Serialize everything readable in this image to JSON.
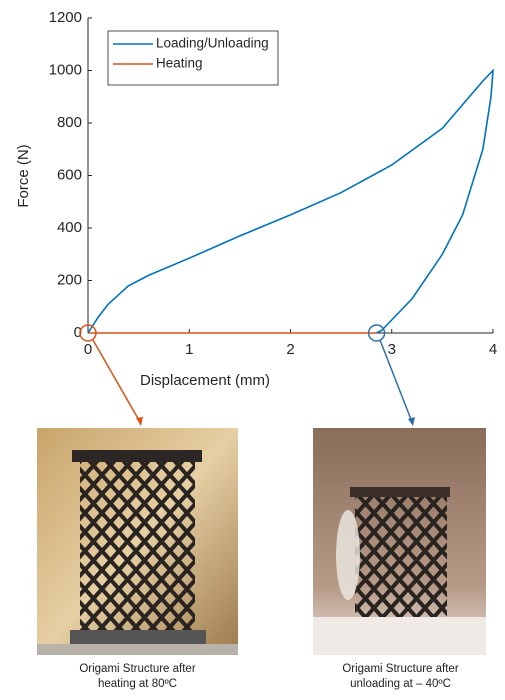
{
  "chart_data": {
    "type": "line",
    "xlabel": "Displacement (mm)",
    "ylabel": "Force (N)",
    "xlim": [
      0,
      4
    ],
    "ylim": [
      0,
      1200
    ],
    "xticks": [
      0,
      1,
      2,
      3,
      4
    ],
    "yticks": [
      0,
      200,
      400,
      600,
      800,
      1000,
      1200
    ],
    "legend": "upper left",
    "series": [
      {
        "name": "Loading/Unloading",
        "color": "#0072bd",
        "x": [
          0,
          0.1,
          0.2,
          0.4,
          0.6,
          1,
          1.5,
          2,
          2.5,
          3,
          3.5,
          3.9,
          4,
          3.98,
          3.9,
          3.7,
          3.5,
          3.2,
          3.0,
          2.9,
          2.85
        ],
        "values": [
          0,
          60,
          110,
          180,
          220,
          285,
          370,
          450,
          535,
          640,
          780,
          960,
          1000,
          900,
          700,
          450,
          300,
          130,
          50,
          10,
          0
        ]
      },
      {
        "name": "Heating",
        "color": "#d95319",
        "x": [
          2.85,
          0
        ],
        "values": [
          0,
          0
        ]
      }
    ]
  },
  "images": [
    {
      "caption": "Origami Structure after heating at 80ºC"
    },
    {
      "caption": "Origami Structure after unloading at – 40ºC"
    }
  ]
}
